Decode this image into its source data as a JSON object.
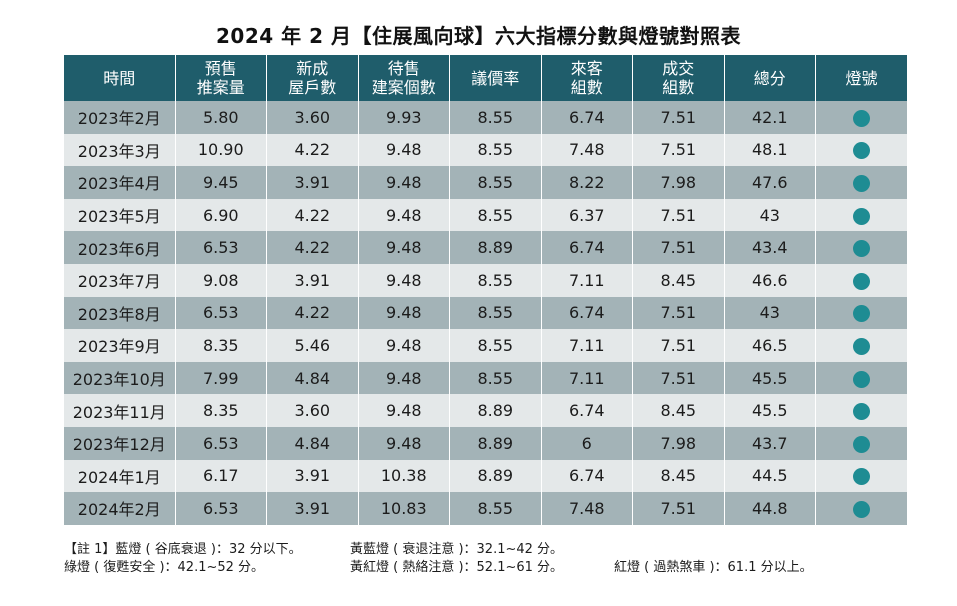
{
  "title": "2024 年 2 月【住展風向球】六大指標分數與燈號對照表",
  "columns": [
    {
      "line1": "時間",
      "line2": ""
    },
    {
      "line1": "預售",
      "line2": "推案量"
    },
    {
      "line1": "新成",
      "line2": "屋戶數"
    },
    {
      "line1": "待售",
      "line2": "建案個數"
    },
    {
      "line1": "議價率",
      "line2": ""
    },
    {
      "line1": "來客",
      "line2": "組數"
    },
    {
      "line1": "成交",
      "line2": "組數"
    },
    {
      "line1": "總分",
      "line2": ""
    },
    {
      "line1": "燈號",
      "line2": ""
    }
  ],
  "rows": [
    {
      "time": "2023年2月",
      "v1": "5.80",
      "v2": "3.60",
      "v3": "9.93",
      "v4": "8.55",
      "v5": "6.74",
      "v6": "7.51",
      "total": "42.1",
      "light": "green"
    },
    {
      "time": "2023年3月",
      "v1": "10.90",
      "v2": "4.22",
      "v3": "9.48",
      "v4": "8.55",
      "v5": "7.48",
      "v6": "7.51",
      "total": "48.1",
      "light": "green"
    },
    {
      "time": "2023年4月",
      "v1": "9.45",
      "v2": "3.91",
      "v3": "9.48",
      "v4": "8.55",
      "v5": "8.22",
      "v6": "7.98",
      "total": "47.6",
      "light": "green"
    },
    {
      "time": "2023年5月",
      "v1": "6.90",
      "v2": "4.22",
      "v3": "9.48",
      "v4": "8.55",
      "v5": "6.37",
      "v6": "7.51",
      "total": "43",
      "light": "green"
    },
    {
      "time": "2023年6月",
      "v1": "6.53",
      "v2": "4.22",
      "v3": "9.48",
      "v4": "8.89",
      "v5": "6.74",
      "v6": "7.51",
      "total": "43.4",
      "light": "green"
    },
    {
      "time": "2023年7月",
      "v1": "9.08",
      "v2": "3.91",
      "v3": "9.48",
      "v4": "8.55",
      "v5": "7.11",
      "v6": "8.45",
      "total": "46.6",
      "light": "green"
    },
    {
      "time": "2023年8月",
      "v1": "6.53",
      "v2": "4.22",
      "v3": "9.48",
      "v4": "8.55",
      "v5": "6.74",
      "v6": "7.51",
      "total": "43",
      "light": "green"
    },
    {
      "time": "2023年9月",
      "v1": "8.35",
      "v2": "5.46",
      "v3": "9.48",
      "v4": "8.55",
      "v5": "7.11",
      "v6": "7.51",
      "total": "46.5",
      "light": "green"
    },
    {
      "time": "2023年10月",
      "v1": "7.99",
      "v2": "4.84",
      "v3": "9.48",
      "v4": "8.55",
      "v5": "7.11",
      "v6": "7.51",
      "total": "45.5",
      "light": "green"
    },
    {
      "time": "2023年11月",
      "v1": "8.35",
      "v2": "3.60",
      "v3": "9.48",
      "v4": "8.89",
      "v5": "6.74",
      "v6": "8.45",
      "total": "45.5",
      "light": "green"
    },
    {
      "time": "2023年12月",
      "v1": "6.53",
      "v2": "4.84",
      "v3": "9.48",
      "v4": "8.89",
      "v5": "6",
      "v6": "7.98",
      "total": "43.7",
      "light": "green"
    },
    {
      "time": "2024年1月",
      "v1": "6.17",
      "v2": "3.91",
      "v3": "10.38",
      "v4": "8.89",
      "v5": "6.74",
      "v6": "8.45",
      "total": "44.5",
      "light": "green"
    },
    {
      "time": "2024年2月",
      "v1": "6.53",
      "v2": "3.91",
      "v3": "10.83",
      "v4": "8.55",
      "v5": "7.48",
      "v6": "7.51",
      "total": "44.8",
      "light": "green"
    }
  ],
  "notes": {
    "blue": "【註 1】藍燈 ( 谷底衰退 )：32 分以下。",
    "yellow_blue": "黃藍燈 ( 衰退注意 )：32.1~42 分。",
    "green": "綠燈 ( 復甦安全 )：42.1~52 分。",
    "yellow_red": "黃紅燈 ( 熱絡注意 )：52.1~61 分。",
    "red": "紅燈 ( 過熱煞車 )：61.1 分以上。"
  },
  "colors": {
    "header_bg": "#1f5d6b",
    "row_dark": "#a3b3b7",
    "row_light": "#e4e8e9",
    "green_light": "#1e8c93"
  }
}
